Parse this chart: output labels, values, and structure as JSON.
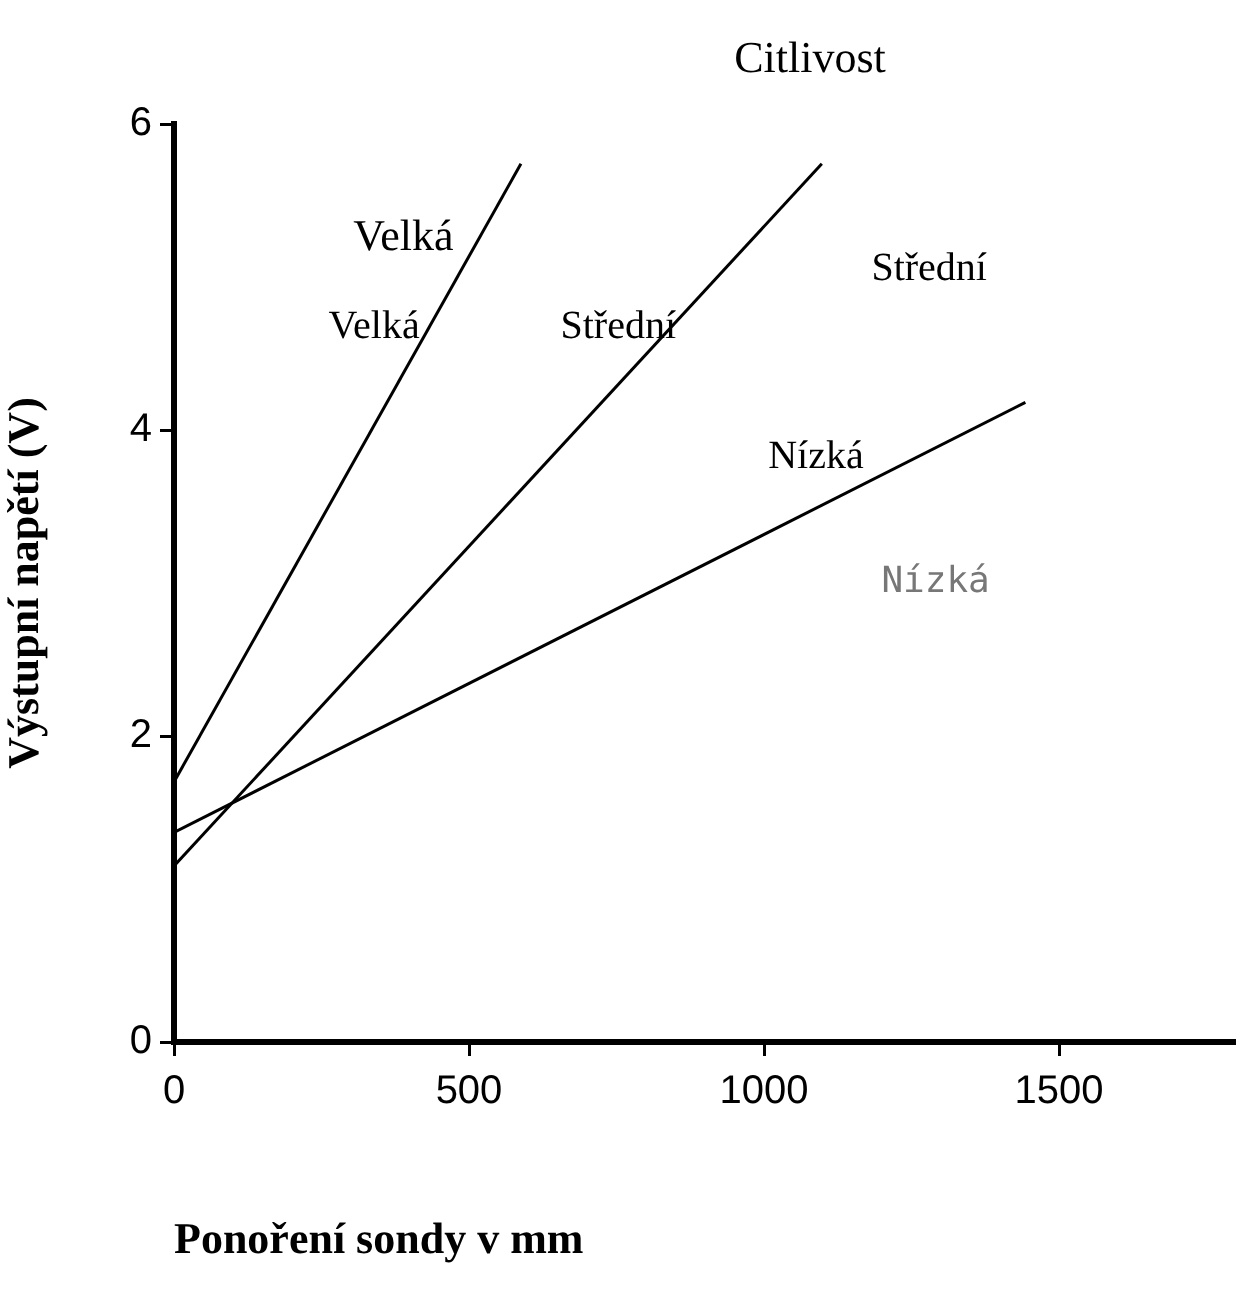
{
  "chart_data": {
    "type": "line",
    "title": "Citlivost",
    "xlabel": "Ponoření sondy v mm",
    "ylabel": "Výstupní napětí (V)",
    "xlim": [
      0,
      1800
    ],
    "xticks": [
      0,
      500,
      1000,
      1500
    ],
    "ylim": [
      0,
      6
    ],
    "yticks": [
      0,
      2,
      4,
      6
    ],
    "grid": false,
    "legend": false,
    "marker": "none",
    "line_style": "solid",
    "series": [
      {
        "name": "Velká",
        "color": "#000000",
        "x": [
          0,
          588
        ],
        "values": [
          1.7,
          5.74
        ]
      },
      {
        "name": "Střední",
        "color": "#000000",
        "x": [
          0,
          1098
        ],
        "values": [
          1.15,
          5.74
        ]
      },
      {
        "name": "Nízká",
        "color": "#000000",
        "x": [
          0,
          1443
        ],
        "values": [
          1.37,
          4.18
        ]
      }
    ],
    "annotations": [
      "Velká",
      "Střední",
      "Nízká"
    ]
  }
}
